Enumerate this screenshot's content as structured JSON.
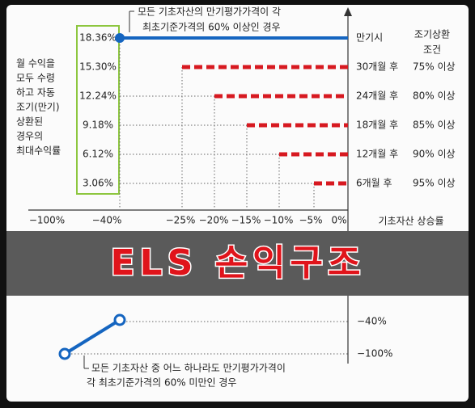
{
  "top_note": [
    "모든 기초자산의 만기평가가격이 각",
    "최초기준가격의 60% 이상인 경우"
  ],
  "left_note": [
    "월 수익을",
    "모두 수령",
    "하고 자동",
    "조기(만기)",
    "상환된",
    "경우의",
    "최대수익률"
  ],
  "returns": [
    "18.36%",
    "15.30%",
    "12.24%",
    "9.18%",
    "6.12%",
    "3.06%"
  ],
  "maturity_label": "만기시",
  "condition_header": [
    "조기상환",
    "조건"
  ],
  "rows": [
    {
      "period": "30개월 후",
      "condition": "75% 이상"
    },
    {
      "period": "24개월 후",
      "condition": "80% 이상"
    },
    {
      "period": "18개월 후",
      "condition": "85% 이상"
    },
    {
      "period": "12개월 후",
      "condition": "90% 이상"
    },
    {
      "period": "6개월 후",
      "condition": "95% 이상"
    }
  ],
  "x_ticks": [
    "−100%",
    "−40%",
    "−25%",
    "−20%",
    "−15%",
    "−10%",
    "−5%",
    "0%"
  ],
  "x_axis_label": "기초자산 상승률",
  "loss_ticks": [
    "−40%",
    "−100%"
  ],
  "title": "ELS 손익구조",
  "bottom_note": [
    "모든 기초자산 중 어느 하나라도 만기평가가격이",
    "각 최초기준가격의 60% 미만인 경우"
  ]
}
